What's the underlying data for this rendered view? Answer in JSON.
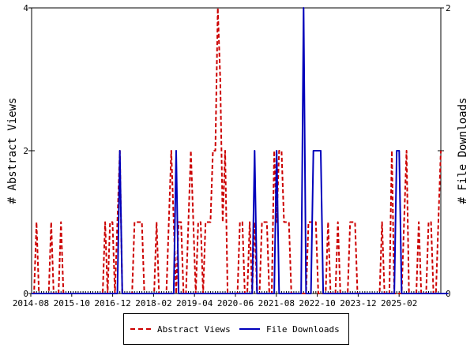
{
  "chart_data": {
    "type": "line",
    "xlabel": "",
    "ylabel_left": "# Abstract Views",
    "ylabel_right": "# File Downloads",
    "x_tick_labels": [
      "2014-08",
      "2015-10",
      "2016-12",
      "2018-02",
      "2019-04",
      "2020-06",
      "2021-08",
      "2022-10",
      "2023-12",
      "2025-02"
    ],
    "ylim_left": [
      0,
      4
    ],
    "yticks_left": [
      0,
      2,
      4
    ],
    "ylim_right": [
      0,
      2
    ],
    "yticks_right": [
      0,
      1,
      2
    ],
    "grid": false,
    "legend_position": "bottom",
    "series": [
      {
        "name": "Abstract Views",
        "axis": "left",
        "color": "#cc0000",
        "dash": "dashed",
        "values": [
          0,
          0,
          1,
          0,
          0,
          0,
          0,
          0,
          1,
          0,
          0,
          0,
          1,
          0,
          0,
          0,
          0,
          0,
          0,
          0,
          0,
          0,
          0,
          0,
          0,
          0,
          0,
          0,
          0,
          0,
          1,
          0,
          1,
          1,
          0,
          1,
          2,
          0,
          0,
          0,
          0,
          0,
          1,
          1,
          1,
          1,
          0,
          0,
          0,
          0,
          0,
          1,
          0,
          0,
          0,
          0,
          1,
          2,
          1,
          0,
          1,
          1,
          0,
          0,
          1,
          2,
          1,
          0,
          1,
          1,
          0,
          1,
          1,
          1,
          2,
          2,
          4,
          3,
          1,
          2,
          0,
          0,
          0,
          0,
          0,
          1,
          1,
          0,
          0,
          1,
          0,
          1,
          0,
          0,
          1,
          1,
          1,
          0,
          0,
          2,
          1,
          2,
          2,
          1,
          1,
          1,
          0,
          0,
          0,
          0,
          0,
          0,
          0,
          1,
          1,
          1,
          1,
          0,
          0,
          0,
          0,
          1,
          0,
          0,
          0,
          1,
          0,
          0,
          0,
          0,
          1,
          1,
          1,
          0,
          0,
          0,
          0,
          0,
          0,
          0,
          0,
          0,
          0,
          1,
          0,
          0,
          0,
          2,
          0,
          0,
          0,
          0,
          1,
          2,
          0,
          0,
          0,
          0,
          1,
          0,
          0,
          0,
          1,
          1,
          0,
          0,
          1,
          2
        ]
      },
      {
        "name": "File Downloads",
        "axis": "right",
        "color": "#0000bb",
        "dash": "solid",
        "values": [
          0,
          0,
          0,
          0,
          0,
          0,
          0,
          0,
          0,
          0,
          0,
          0,
          0,
          0,
          0,
          0,
          0,
          0,
          0,
          0,
          0,
          0,
          0,
          0,
          0,
          0,
          0,
          0,
          0,
          0,
          0,
          0,
          0,
          0,
          0,
          0,
          1,
          0,
          0,
          0,
          0,
          0,
          0,
          0,
          0,
          0,
          0,
          0,
          0,
          0,
          0,
          0,
          0,
          0,
          0,
          0,
          0,
          0,
          0,
          1,
          0,
          0,
          0,
          0,
          0,
          0,
          0,
          0,
          0,
          0,
          0,
          0,
          0,
          0,
          0,
          0,
          0,
          0,
          0,
          0,
          0,
          0,
          0,
          0,
          0,
          0,
          0,
          0,
          0,
          0,
          0,
          1,
          0,
          0,
          0,
          0,
          0,
          0,
          0,
          0,
          1,
          0,
          0,
          0,
          0,
          0,
          0,
          0,
          0,
          0,
          0,
          2,
          0,
          0,
          0,
          1,
          1,
          1,
          1,
          0,
          0,
          0,
          0,
          0,
          0,
          0,
          0,
          0,
          0,
          0,
          0,
          0,
          0,
          0,
          0,
          0,
          0,
          0,
          0,
          0,
          0,
          0,
          0,
          0,
          0,
          0,
          0,
          0,
          0,
          1,
          1,
          0,
          0,
          0,
          0,
          0,
          0,
          0,
          0,
          0,
          0,
          0,
          0,
          0,
          0,
          0,
          0,
          0,
          0,
          0,
          0
        ]
      }
    ]
  }
}
